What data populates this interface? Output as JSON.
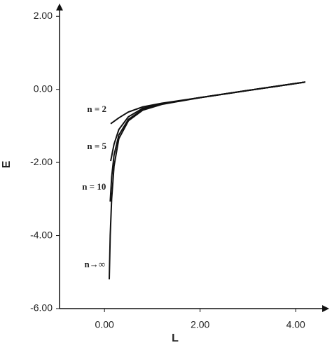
{
  "chart_data": {
    "type": "line",
    "x_label": "L",
    "y_label": "E",
    "xlim": [
      -0.94,
      4.7
    ],
    "ylim": [
      -6,
      2.35
    ],
    "xticks": [
      {
        "value": 0,
        "label": "0.00"
      },
      {
        "value": 2,
        "label": "2.00"
      },
      {
        "value": 4,
        "label": "4.00"
      }
    ],
    "yticks": [
      {
        "value": -6,
        "label": "-6.00"
      },
      {
        "value": -4,
        "label": "-4.00"
      },
      {
        "value": -2,
        "label": "-2.00"
      },
      {
        "value": 0,
        "label": "0.00"
      },
      {
        "value": 2,
        "label": "2.00"
      }
    ],
    "series": [
      {
        "name": "n = 2",
        "color": "#111111",
        "x": [
          0.13,
          0.3,
          0.5,
          0.8,
          1.2,
          2,
          3,
          4.2
        ],
        "values": [
          -0.94,
          -0.78,
          -0.62,
          -0.48,
          -0.38,
          -0.225,
          -0.03,
          0.2
        ]
      },
      {
        "name": "n = 5",
        "color": "#111111",
        "x": [
          0.13,
          0.2,
          0.3,
          0.5,
          0.8,
          1.2,
          2,
          3,
          4.2
        ],
        "values": [
          -1.96,
          -1.5,
          -1.1,
          -0.75,
          -0.52,
          -0.39,
          -0.225,
          -0.03,
          0.2
        ]
      },
      {
        "name": "n = 10",
        "color": "#111111",
        "x": [
          0.12,
          0.15,
          0.2,
          0.3,
          0.5,
          0.8,
          1.2,
          2,
          3,
          4.2
        ],
        "values": [
          -3.07,
          -2.4,
          -1.8,
          -1.25,
          -0.82,
          -0.55,
          -0.4,
          -0.225,
          -0.03,
          0.2
        ]
      },
      {
        "name": "n→∞",
        "color": "#111111",
        "x": [
          0.1,
          0.12,
          0.15,
          0.2,
          0.3,
          0.5,
          0.8,
          1.2,
          2,
          3,
          4.2
        ],
        "values": [
          -5.2,
          -4.0,
          -3.0,
          -2.1,
          -1.35,
          -0.86,
          -0.57,
          -0.41,
          -0.225,
          -0.03,
          0.2
        ]
      }
    ]
  }
}
